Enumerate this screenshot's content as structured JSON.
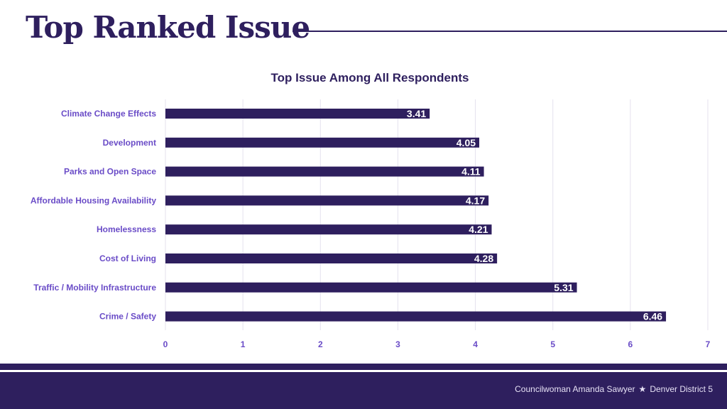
{
  "page": {
    "title": "Top Ranked Issue"
  },
  "footer": {
    "name": "Councilwoman Amanda Sawyer",
    "separator": "★",
    "district": "Denver District 5"
  },
  "colors": {
    "bar": "#2e1f5e",
    "category_text": "#6a4cc7",
    "tick_text": "#6a4cc7",
    "title_text": "#2e1f5e",
    "grid": "#e4e1ee"
  },
  "chart_data": {
    "type": "bar",
    "orientation": "horizontal",
    "title": "Top Issue Among All Respondents",
    "categories": [
      "Climate Change Effects",
      "Development",
      "Parks and Open Space",
      "Affordable Housing Availability",
      "Homelessness",
      "Cost of Living",
      "Traffic / Mobility Infrastructure",
      "Crime / Safety"
    ],
    "values": [
      3.41,
      4.05,
      4.11,
      4.17,
      4.21,
      4.28,
      5.31,
      6.46
    ],
    "xlim": [
      0,
      7
    ],
    "xticks": [
      0,
      1,
      2,
      3,
      4,
      5,
      6,
      7
    ],
    "xlabel": "",
    "ylabel": "",
    "grid": true,
    "data_labels": true
  }
}
